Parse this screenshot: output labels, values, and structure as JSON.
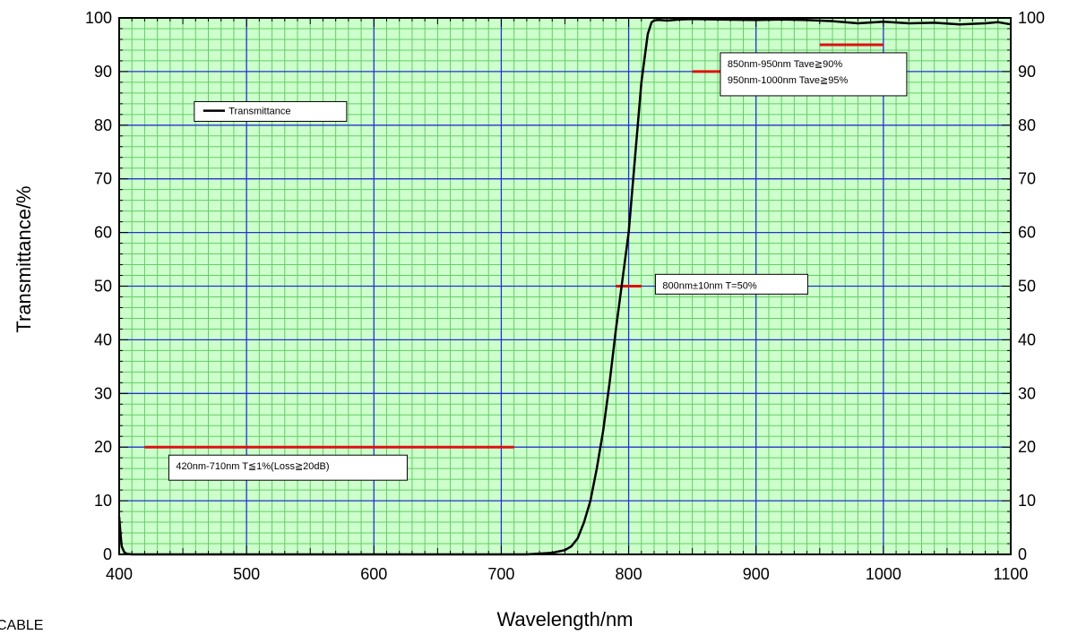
{
  "chart_data": {
    "type": "line",
    "xlabel": "Wavelength/nm",
    "ylabel": "Transmittance/%",
    "xlim": [
      400,
      1100
    ],
    "ylim": [
      0,
      100
    ],
    "x_ticks": [
      "400",
      "500",
      "600",
      "700",
      "800",
      "900",
      "1000",
      "1100"
    ],
    "y_ticks": [
      "0",
      "10",
      "20",
      "30",
      "40",
      "50",
      "60",
      "70",
      "80",
      "90",
      "100"
    ],
    "grid": true,
    "colors": {
      "plot_background": "#ccffcc",
      "minor_grid": "#66cc66",
      "major_grid": "#2233cc",
      "curve": "#000000",
      "spec_marks": "#dd1111"
    },
    "legend": {
      "entries": [
        "Transmittance"
      ],
      "position": "upper-left"
    },
    "series": [
      {
        "name": "Transmittance",
        "x": [
          400,
          401,
          402,
          404,
          406,
          410,
          420,
          450,
          500,
          550,
          600,
          650,
          700,
          720,
          740,
          750,
          755,
          760,
          765,
          770,
          775,
          780,
          785,
          790,
          795,
          800,
          805,
          810,
          815,
          818,
          820,
          822,
          825,
          830,
          840,
          850,
          870,
          900,
          920,
          940,
          960,
          980,
          1000,
          1020,
          1040,
          1060,
          1080,
          1090,
          1100
        ],
        "y": [
          7,
          4,
          1.5,
          0.4,
          0.1,
          0,
          0,
          0,
          0,
          0,
          0,
          0,
          0,
          0,
          0.3,
          0.8,
          1.5,
          3,
          6,
          10,
          16,
          23,
          32,
          42,
          51,
          60,
          74,
          88,
          97,
          99.2,
          99.5,
          99.6,
          99.6,
          99.5,
          99.7,
          99.8,
          99.7,
          99.6,
          99.7,
          99.6,
          99.4,
          99.0,
          99.3,
          99.0,
          99.1,
          98.8,
          99.0,
          99.2,
          98.8
        ]
      }
    ],
    "spec_marks": [
      {
        "x1": 420,
        "x2": 710,
        "y": 20
      },
      {
        "x1": 790,
        "x2": 810,
        "y": 50
      },
      {
        "x1": 850,
        "x2": 950,
        "y": 90
      },
      {
        "x1": 950,
        "x2": 1000,
        "y": 95
      }
    ],
    "annotations": [
      {
        "lines": [
          "420nm-710nm T≦1%(Loss≧20dB)"
        ]
      },
      {
        "lines": [
          "800nm±10nm T=50%"
        ]
      },
      {
        "lines": [
          "850nm-950nm Tave≧90%",
          "950nm-1000nm Tave≧95%"
        ]
      }
    ]
  },
  "stray_text": "CABLE"
}
